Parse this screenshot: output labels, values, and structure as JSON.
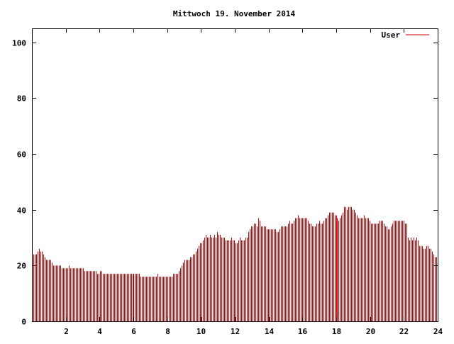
{
  "chart_data": {
    "type": "bar",
    "title": "Mittwoch 19. November 2014",
    "xlabel": "",
    "ylabel": "",
    "xlim": [
      0,
      24
    ],
    "ylim": [
      0,
      105
    ],
    "xticks": [
      "2",
      "4",
      "6",
      "8",
      "10",
      "12",
      "14",
      "16",
      "18",
      "20",
      "22",
      "24"
    ],
    "yticks": [
      "0",
      "20",
      "40",
      "60",
      "80",
      "100"
    ],
    "legend_position": "top-right",
    "grid": false,
    "bar_color": "#cc0000",
    "series": [
      {
        "name": "User",
        "color": "#cc0000",
        "x_step_hours": 0.0833,
        "values": [
          24,
          24,
          24,
          24,
          25,
          26,
          25,
          25,
          24,
          23,
          22,
          22,
          22,
          22,
          21,
          20,
          20,
          20,
          20,
          20,
          20,
          19,
          19,
          19,
          19,
          19,
          20,
          19,
          19,
          19,
          19,
          19,
          19,
          19,
          19,
          19,
          19,
          18,
          18,
          18,
          18,
          18,
          18,
          18,
          18,
          18,
          17,
          17,
          18,
          18,
          17,
          17,
          17,
          17,
          17,
          17,
          17,
          17,
          17,
          17,
          17,
          17,
          17,
          17,
          17,
          17,
          17,
          17,
          17,
          17,
          17,
          17,
          17,
          17,
          17,
          17,
          17,
          16,
          16,
          16,
          16,
          16,
          16,
          16,
          16,
          16,
          16,
          16,
          16,
          17,
          16,
          16,
          16,
          16,
          16,
          16,
          16,
          16,
          16,
          16,
          17,
          17,
          17,
          17,
          18,
          19,
          20,
          21,
          22,
          22,
          22,
          22,
          23,
          23,
          24,
          24,
          25,
          26,
          27,
          28,
          28,
          29,
          30,
          31,
          30,
          30,
          31,
          30,
          30,
          31,
          30,
          32,
          31,
          31,
          30,
          30,
          30,
          29,
          29,
          29,
          29,
          30,
          29,
          29,
          28,
          28,
          29,
          30,
          29,
          29,
          29,
          30,
          30,
          32,
          33,
          34,
          34,
          35,
          35,
          34,
          37,
          36,
          34,
          34,
          34,
          34,
          33,
          33,
          33,
          33,
          33,
          33,
          33,
          32,
          32,
          33,
          34,
          34,
          34,
          34,
          34,
          35,
          36,
          35,
          35,
          36,
          37,
          37,
          38,
          37,
          37,
          37,
          37,
          37,
          37,
          36,
          35,
          35,
          34,
          34,
          34,
          35,
          35,
          36,
          35,
          35,
          36,
          37,
          37,
          38,
          39,
          39,
          39,
          39,
          38,
          38,
          37,
          36,
          37,
          38,
          39,
          41,
          41,
          40,
          41,
          41,
          41,
          40,
          40,
          39,
          38,
          37,
          37,
          37,
          37,
          38,
          37,
          37,
          37,
          36,
          35,
          35,
          35,
          35,
          35,
          35,
          36,
          36,
          36,
          35,
          34,
          34,
          33,
          33,
          34,
          35,
          36,
          36,
          36,
          36,
          36,
          36,
          36,
          36,
          35,
          35,
          30,
          29,
          30,
          29,
          30,
          29,
          30,
          29,
          27,
          27,
          27,
          26,
          26,
          27,
          27,
          26,
          26,
          25,
          24,
          23,
          23,
          23
        ]
      }
    ]
  }
}
